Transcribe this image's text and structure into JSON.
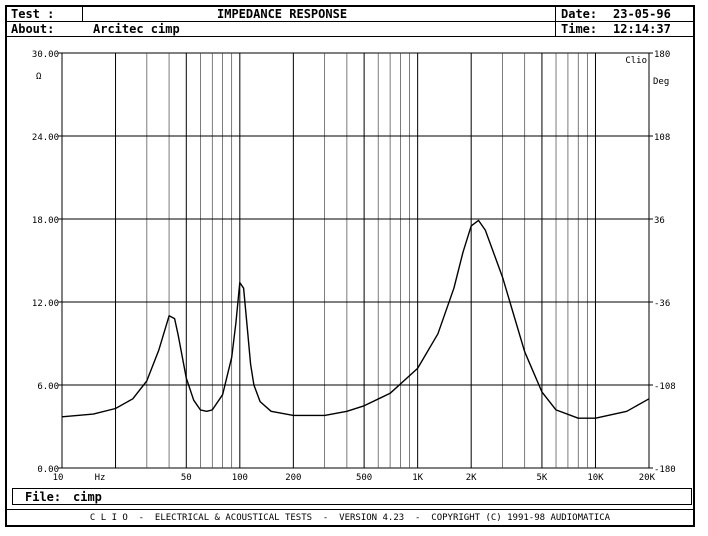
{
  "header": {
    "test_label": "Test :",
    "title": "IMPEDANCE RESPONSE",
    "about_label": "About:",
    "about_value": "Arcitec cimp",
    "date_label": "Date:",
    "date_value": "23-05-96",
    "time_label": "Time:",
    "time_value": "12:14:37"
  },
  "file": {
    "label": "File:",
    "value": "cimp"
  },
  "footer": {
    "text": "C L I O  -  ELECTRICAL & ACOUSTICAL TESTS  -  VERSION 4.23  -  COPYRIGHT (C) 1991-98 AUDIOMATICA"
  },
  "chart_data": {
    "type": "line",
    "logo": "Clio",
    "xscale": "log",
    "xlim": [
      10,
      20000
    ],
    "ylim": [
      0,
      30
    ],
    "y2lim": [
      -180,
      180
    ],
    "grid": true,
    "y_unit": "Ω",
    "y2_unit": "Deg",
    "x_unit": "Hz",
    "y_ticks": [
      "0.00",
      "6.00",
      "12.00",
      "18.00",
      "24.00",
      "30.00"
    ],
    "y2_ticks": [
      "-180",
      "-108",
      "-36",
      "36",
      "108",
      "180"
    ],
    "x_tick_labels": [
      {
        "x": 10,
        "label": "10"
      },
      {
        "x": 50,
        "label": "50"
      },
      {
        "x": 100,
        "label": "100"
      },
      {
        "x": 200,
        "label": "200"
      },
      {
        "x": 500,
        "label": "500"
      },
      {
        "x": 1000,
        "label": "1K"
      },
      {
        "x": 2000,
        "label": "2K"
      },
      {
        "x": 5000,
        "label": "5K"
      },
      {
        "x": 10000,
        "label": "10K"
      },
      {
        "x": 20000,
        "label": "20K"
      }
    ],
    "series": [
      {
        "x": [
          10,
          15,
          20,
          25,
          30,
          35,
          40,
          43,
          45,
          50,
          55,
          60,
          65,
          70,
          80,
          90,
          95,
          100,
          105,
          110,
          115,
          120,
          130,
          150,
          200,
          300,
          400,
          500,
          700,
          1000,
          1300,
          1600,
          1800,
          2000,
          2200,
          2400,
          3000,
          4000,
          5000,
          6000,
          8000,
          10000,
          15000,
          20000
        ],
        "y": [
          3.7,
          3.9,
          4.3,
          5.0,
          6.3,
          8.5,
          11.0,
          10.8,
          9.6,
          6.5,
          4.9,
          4.2,
          4.1,
          4.2,
          5.3,
          8.0,
          10.5,
          13.4,
          13.0,
          10.2,
          7.5,
          6.0,
          4.8,
          4.1,
          3.8,
          3.8,
          4.1,
          4.5,
          5.4,
          7.2,
          9.7,
          13.0,
          15.6,
          17.5,
          17.9,
          17.2,
          13.8,
          8.4,
          5.5,
          4.2,
          3.6,
          3.6,
          4.1,
          5.0
        ]
      }
    ]
  }
}
